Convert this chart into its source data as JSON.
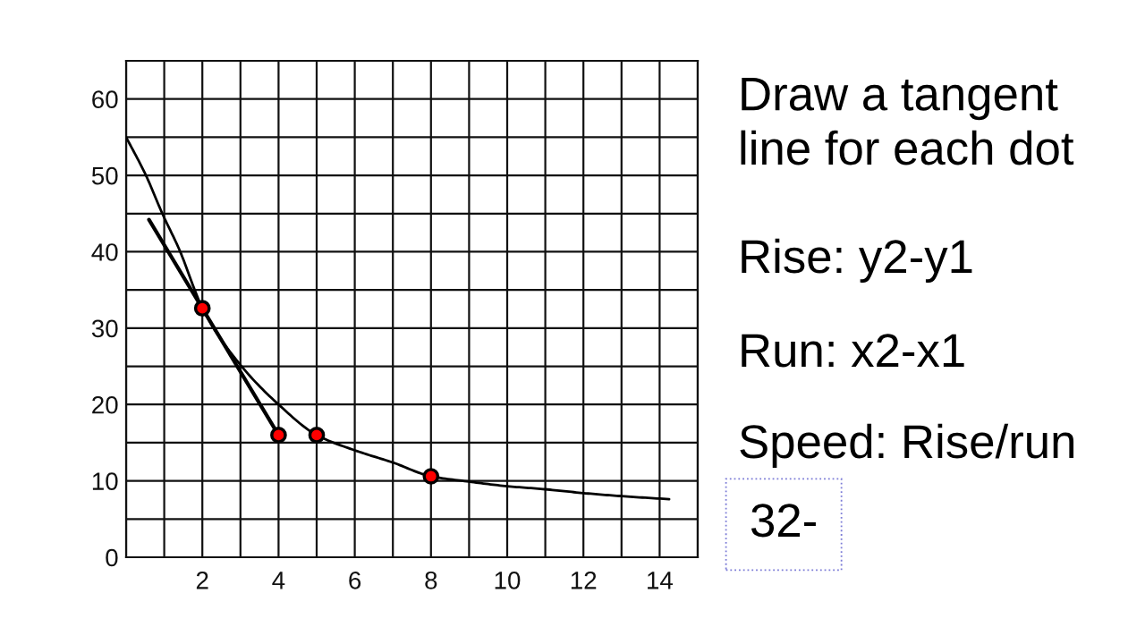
{
  "chart_data": {
    "type": "line",
    "xlim": [
      0,
      15
    ],
    "ylim": [
      0,
      65
    ],
    "xticks": [
      {
        "value": 0,
        "label": null
      },
      {
        "value": 1,
        "label": null
      },
      2,
      {
        "value": 3,
        "label": null
      },
      4,
      {
        "value": 5,
        "label": null
      },
      6,
      {
        "value": 7,
        "label": null
      },
      8,
      {
        "value": 9,
        "label": null
      },
      10,
      {
        "value": 11,
        "label": null
      },
      12,
      {
        "value": 13,
        "label": null
      },
      14,
      {
        "value": 15,
        "label": null
      }
    ],
    "yticks": [
      0,
      {
        "value": 5,
        "label": null
      },
      10,
      {
        "value": 15,
        "label": null
      },
      20,
      {
        "value": 25,
        "label": null
      },
      30,
      {
        "value": 35,
        "label": null
      },
      40,
      {
        "value": 45,
        "label": null
      },
      50,
      {
        "value": 55,
        "label": null
      },
      60,
      {
        "value": 65,
        "label": null
      }
    ],
    "grid": true,
    "series": [
      {
        "color": "#000000",
        "x": [
          0,
          0.52,
          0.95,
          1.42,
          1.8,
          2.0,
          3.03,
          4.0,
          5.0,
          6,
          7,
          8,
          9,
          10,
          11,
          12,
          13,
          14.25
        ],
        "values": [
          55,
          50,
          45,
          40,
          35,
          32.6,
          25,
          20,
          16,
          14,
          12.4,
          10.6,
          9.9,
          9.3,
          8.9,
          8.4,
          8.0,
          7.6
        ]
      },
      {
        "color": "#000000",
        "x": [
          0.6,
          4
        ],
        "values": [
          44.2,
          16
        ]
      },
      {
        "type": "scatter",
        "marker": "circle",
        "color": "#ff0000",
        "x": [
          2,
          4,
          5,
          8
        ],
        "values": [
          32.6,
          16,
          16,
          10.6
        ]
      }
    ],
    "annotations": [
      "Draw a tangent line for each dot",
      "Rise: y2-y1",
      "Run: x2-x1",
      "Speed: Rise/run",
      "32-"
    ]
  }
}
